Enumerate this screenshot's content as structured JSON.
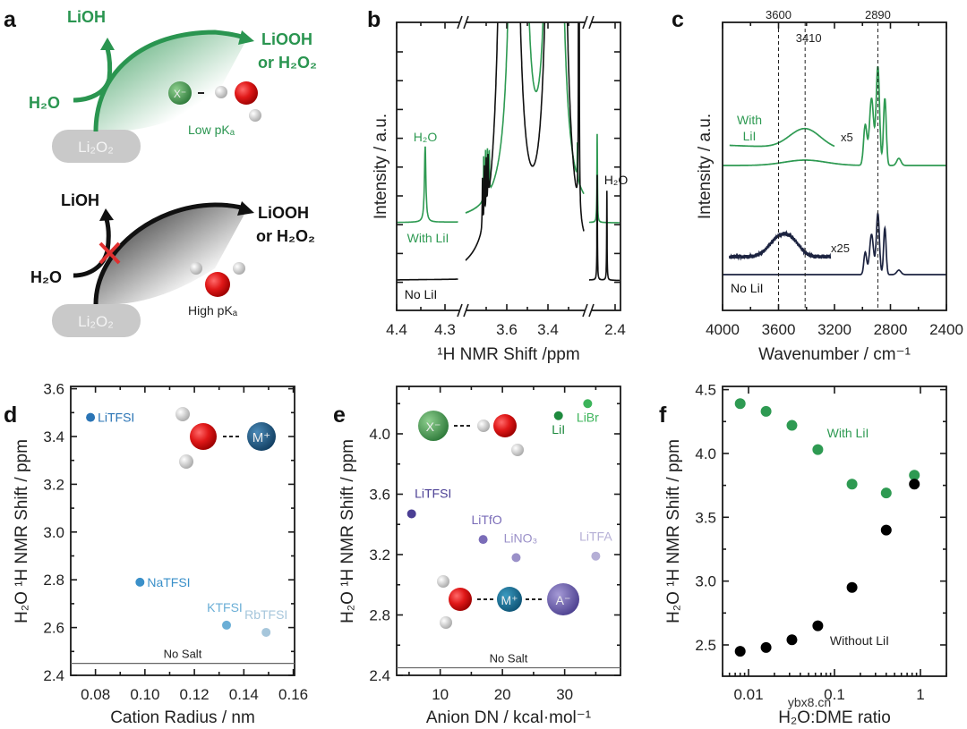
{
  "figure": {
    "panel_labels": [
      "a",
      "b",
      "c",
      "d",
      "e",
      "f"
    ]
  },
  "panel_a": {
    "top": {
      "lioh": "LiOH",
      "liooh": "LiOOH",
      "or_h2o2": "or H₂O₂",
      "h2o": "H₂O",
      "li2o2": "Li₂O₂",
      "anion": "X⁻",
      "pka": "Low pKₐ"
    },
    "bottom": {
      "lioh": "LiOH",
      "liooh": "LiOOH",
      "or_h2o2": "or H₂O₂",
      "h2o": "H₂O",
      "li2o2": "Li₂O₂",
      "pka": "High pKₐ"
    },
    "colors": {
      "green": "#2a9550",
      "black": "#111111",
      "blocked": "#e03030"
    }
  },
  "chart_data": [
    {
      "panel": "b",
      "type": "line",
      "xlabel": "¹H NMR Shift /ppm",
      "ylabel": "Intensity / a.u.",
      "xticks": [
        "4.4",
        "4.3",
        "3.6",
        "3.4",
        "2.4"
      ],
      "axis_breaks_ppm": [
        [
          4.27,
          3.8
        ],
        [
          3.23,
          2.53
        ]
      ],
      "series": [
        {
          "name": "With LiI",
          "color": "#2e9a52",
          "peaks": [
            [
              4.341,
              85,
              0.0018
            ],
            [
              3.712,
              48,
              0.0015
            ],
            [
              3.703,
              52,
              0.0015
            ],
            [
              3.694,
              50,
              0.0015
            ],
            [
              3.685,
              45,
              0.0015
            ],
            [
              3.545,
              4000,
              0.012
            ],
            [
              3.37,
              4000,
              0.012
            ],
            [
              3.335,
              170,
              0.0012
            ],
            [
              3.257,
              40,
              0.0012
            ],
            [
              2.487,
              100,
              0.0015
            ]
          ]
        },
        {
          "name": "No LiI",
          "color": "#111111",
          "peaks": [
            [
              3.718,
              55,
              0.0015
            ],
            [
              3.709,
              60,
              0.0015
            ],
            [
              3.7,
              58,
              0.0015
            ],
            [
              3.691,
              50,
              0.0015
            ],
            [
              3.59,
              6000,
              0.012
            ],
            [
              3.36,
              6000,
              0.012
            ],
            [
              3.335,
              120,
              0.0012
            ],
            [
              3.25,
              900,
              0.0012
            ],
            [
              2.487,
              120,
              0.0012
            ],
            [
              2.44,
              100,
              0.0012
            ]
          ]
        }
      ],
      "annotations": {
        "h2o_green": "H₂O",
        "h2o_black": "H₂O",
        "with": "With LiI",
        "without": "No LiI"
      }
    },
    {
      "panel": "c",
      "type": "line",
      "xlabel": "Wavenumber / cm⁻¹",
      "ylabel": "Intensity / a.u.",
      "xlim": [
        4000,
        2400
      ],
      "xticks": [
        "4000",
        "3600",
        "3200",
        "2800",
        "2400"
      ],
      "reference_lines": [
        "3600",
        "3410",
        "2890"
      ],
      "series": [
        {
          "name": "With LiI",
          "color": "#2e9a52",
          "peaks": [
            [
              2980,
              45,
              12
            ],
            [
              2935,
              75,
              15
            ],
            [
              2890,
              110,
              12
            ],
            [
              2840,
              75,
              10
            ],
            [
              2740,
              8,
              15
            ],
            [
              3410,
              6,
              150
            ]
          ]
        },
        {
          "name": "With LiI x5",
          "color": "#2e9a52",
          "range": [
            3950,
            3200
          ],
          "peaks": [
            [
              3410,
              22,
              110
            ]
          ]
        },
        {
          "name": "No LiI",
          "color": "#1c2340",
          "peaks": [
            [
              2980,
              25,
              10
            ],
            [
              2935,
              45,
              14
            ],
            [
              2890,
              68,
              11
            ],
            [
              2840,
              52,
              9
            ],
            [
              2740,
              5,
              15
            ]
          ]
        },
        {
          "name": "No LiI x25",
          "color": "#1c2340",
          "range": [
            3950,
            3230
          ],
          "peaks": [
            [
              3600,
              20,
              70
            ],
            [
              3500,
              14,
              60
            ]
          ]
        }
      ],
      "annotations": {
        "with": "With\nLiI",
        "with_l1": "With",
        "with_l2": "LiI",
        "x5": "x5",
        "x25": "x25",
        "without": "No LiI"
      }
    },
    {
      "panel": "d",
      "type": "scatter",
      "xlabel": "Cation Radius / nm",
      "ylabel": "H₂O ¹H NMR Shift / ppm",
      "xlim": [
        0.07,
        0.16
      ],
      "ylim": [
        2.4,
        3.61
      ],
      "xticks": [
        "0.08",
        "0.10",
        "0.12",
        "0.14",
        "0.16"
      ],
      "yticks": [
        "2.4",
        "2.6",
        "2.8",
        "3.0",
        "3.2",
        "3.4",
        "3.6"
      ],
      "points": [
        {
          "label": "LiTFSI",
          "x": 0.078,
          "y": 3.48,
          "color": "#2a74b5"
        },
        {
          "label": "NaTFSI",
          "x": 0.098,
          "y": 2.79,
          "color": "#3a90c9"
        },
        {
          "label": "KTFSI",
          "x": 0.133,
          "y": 2.61,
          "color": "#6aaed6"
        },
        {
          "label": "RbTFSI",
          "x": 0.149,
          "y": 2.58,
          "color": "#a6c6db"
        }
      ],
      "reference": {
        "label": "No Salt",
        "y": 2.45
      },
      "molecule_label": "M⁺"
    },
    {
      "panel": "e",
      "type": "scatter",
      "xlabel": "Anion DN / kcal·mol⁻¹",
      "ylabel": "H₂O ¹H NMR Shift / ppm",
      "xlim": [
        3,
        39
      ],
      "ylim": [
        2.4,
        4.31
      ],
      "xticks": [
        "10",
        "20",
        "30"
      ],
      "yticks": [
        "2.4",
        "2.8",
        "3.2",
        "3.6",
        "4.0"
      ],
      "points": [
        {
          "label": "LiTFSI",
          "x": 5.4,
          "y": 3.47,
          "color": "#4b3f94"
        },
        {
          "label": "LiTfO",
          "x": 16.9,
          "y": 3.3,
          "color": "#7a6cb8"
        },
        {
          "label": "LiNO₃",
          "x": 22.2,
          "y": 3.18,
          "color": "#9a90c8"
        },
        {
          "label": "LiTFA",
          "x": 35.0,
          "y": 3.19,
          "color": "#b5afd6"
        },
        {
          "label": "LiI",
          "x": 29.0,
          "y": 4.12,
          "color": "#1e8a3e"
        },
        {
          "label": "LiBr",
          "x": 33.7,
          "y": 4.2,
          "color": "#3cb45a"
        }
      ],
      "reference": {
        "label": "No Salt",
        "y": 2.45
      },
      "molecule_labels": {
        "anion": "X⁻",
        "cation": "M⁺",
        "counter_anion": "A⁻"
      }
    },
    {
      "panel": "f",
      "type": "scatter",
      "xlabel": "H₂O:DME ratio",
      "ylabel": "H₂O ¹H NMR Shift / ppm",
      "xscale": "log",
      "xlim": [
        0.005,
        2
      ],
      "ylim": [
        2.25,
        4.53
      ],
      "xticks": [
        "0.01",
        "0.1",
        "1"
      ],
      "yticks": [
        "2.5",
        "3.0",
        "3.5",
        "4.0",
        "4.5"
      ],
      "series": [
        {
          "name": "With LiI",
          "color": "#2e9a52",
          "x": [
            0.008,
            0.016,
            0.032,
            0.064,
            0.16,
            0.4,
            0.85
          ],
          "y": [
            4.39,
            4.33,
            4.22,
            4.03,
            3.76,
            3.69,
            3.83
          ]
        },
        {
          "name": "Without LiI",
          "color": "#000000",
          "x": [
            0.008,
            0.016,
            0.032,
            0.064,
            0.16,
            0.4,
            0.85
          ],
          "y": [
            2.45,
            2.48,
            2.54,
            2.65,
            2.95,
            3.4,
            3.76
          ]
        }
      ]
    }
  ],
  "watermark": "ybx8.cn"
}
